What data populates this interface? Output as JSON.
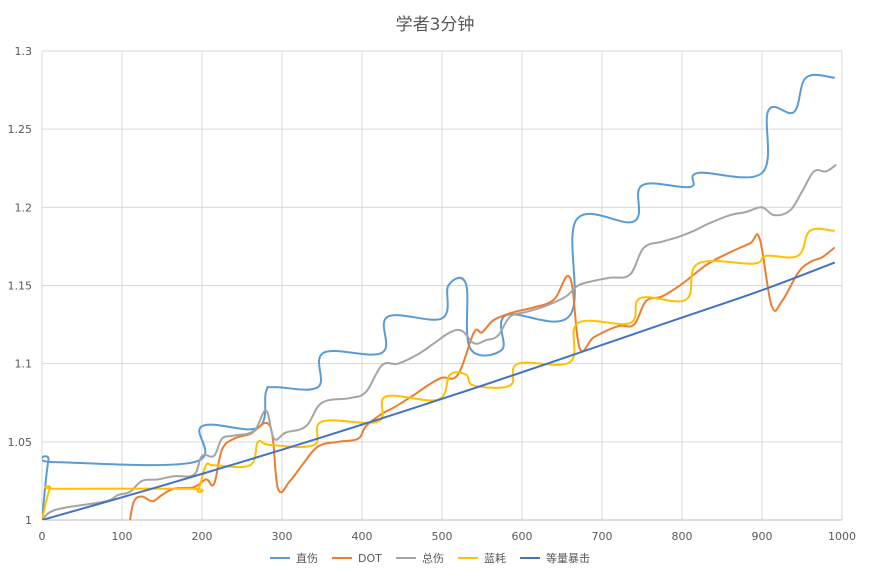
{
  "chart_data": {
    "type": "line",
    "title": "学者3分钟",
    "xlabel": "",
    "ylabel": "",
    "xlim": [
      0,
      1000
    ],
    "ylim": [
      1,
      1.3
    ],
    "x_ticks": [
      0,
      100,
      200,
      300,
      400,
      500,
      600,
      700,
      800,
      900,
      1000
    ],
    "y_ticks": [
      1,
      1.05,
      1.1,
      1.15,
      1.2,
      1.25,
      1.3
    ],
    "y_tick_labels": [
      "1",
      "1.05",
      "1.1",
      "1.15",
      "1.2",
      "1.25",
      "1.3"
    ],
    "grid": true,
    "legend_position": "bottom",
    "series": [
      {
        "name": "直伤",
        "color": "#5B9BD5",
        "points": [
          [
            0,
            1.0
          ],
          [
            8,
            1.038
          ],
          [
            15,
            1.037
          ],
          [
            190,
            1.037
          ],
          [
            200,
            1.06
          ],
          [
            270,
            1.059
          ],
          [
            280,
            1.082
          ],
          [
            290,
            1.085
          ],
          [
            345,
            1.085
          ],
          [
            352,
            1.107
          ],
          [
            425,
            1.107
          ],
          [
            432,
            1.13
          ],
          [
            500,
            1.129
          ],
          [
            508,
            1.15
          ],
          [
            530,
            1.151
          ],
          [
            535,
            1.11
          ],
          [
            575,
            1.109
          ],
          [
            580,
            1.131
          ],
          [
            660,
            1.131
          ],
          [
            668,
            1.192
          ],
          [
            740,
            1.191
          ],
          [
            750,
            1.214
          ],
          [
            810,
            1.213
          ],
          [
            820,
            1.222
          ],
          [
            900,
            1.222
          ],
          [
            908,
            1.262
          ],
          [
            940,
            1.261
          ],
          [
            955,
            1.283
          ],
          [
            990,
            1.283
          ]
        ]
      },
      {
        "name": "DOT",
        "color": "#ED7D31",
        "points": [
          [
            110,
            1.0
          ],
          [
            115,
            1.012
          ],
          [
            125,
            1.015
          ],
          [
            138,
            1.012
          ],
          [
            150,
            1.016
          ],
          [
            165,
            1.02
          ],
          [
            190,
            1.021
          ],
          [
            205,
            1.026
          ],
          [
            215,
            1.023
          ],
          [
            225,
            1.045
          ],
          [
            240,
            1.052
          ],
          [
            260,
            1.055
          ],
          [
            285,
            1.06
          ],
          [
            295,
            1.02
          ],
          [
            310,
            1.025
          ],
          [
            325,
            1.035
          ],
          [
            345,
            1.047
          ],
          [
            370,
            1.05
          ],
          [
            395,
            1.052
          ],
          [
            405,
            1.06
          ],
          [
            425,
            1.068
          ],
          [
            440,
            1.072
          ],
          [
            465,
            1.08
          ],
          [
            485,
            1.087
          ],
          [
            500,
            1.091
          ],
          [
            520,
            1.093
          ],
          [
            540,
            1.12
          ],
          [
            550,
            1.12
          ],
          [
            565,
            1.128
          ],
          [
            590,
            1.133
          ],
          [
            615,
            1.136
          ],
          [
            640,
            1.141
          ],
          [
            660,
            1.155
          ],
          [
            672,
            1.11
          ],
          [
            690,
            1.117
          ],
          [
            720,
            1.124
          ],
          [
            740,
            1.125
          ],
          [
            755,
            1.14
          ],
          [
            775,
            1.143
          ],
          [
            800,
            1.151
          ],
          [
            830,
            1.163
          ],
          [
            855,
            1.17
          ],
          [
            885,
            1.177
          ],
          [
            897,
            1.18
          ],
          [
            912,
            1.137
          ],
          [
            925,
            1.14
          ],
          [
            945,
            1.158
          ],
          [
            960,
            1.165
          ],
          [
            975,
            1.168
          ],
          [
            990,
            1.174
          ]
        ]
      },
      {
        "name": "总伤",
        "color": "#A5A5A5",
        "points": [
          [
            0,
            1.0
          ],
          [
            10,
            1.005
          ],
          [
            30,
            1.008
          ],
          [
            80,
            1.012
          ],
          [
            95,
            1.016
          ],
          [
            110,
            1.018
          ],
          [
            125,
            1.025
          ],
          [
            145,
            1.026
          ],
          [
            165,
            1.028
          ],
          [
            190,
            1.029
          ],
          [
            200,
            1.041
          ],
          [
            215,
            1.041
          ],
          [
            225,
            1.052
          ],
          [
            240,
            1.054
          ],
          [
            265,
            1.057
          ],
          [
            280,
            1.07
          ],
          [
            290,
            1.052
          ],
          [
            305,
            1.056
          ],
          [
            330,
            1.06
          ],
          [
            350,
            1.075
          ],
          [
            385,
            1.078
          ],
          [
            405,
            1.082
          ],
          [
            425,
            1.099
          ],
          [
            445,
            1.1
          ],
          [
            470,
            1.106
          ],
          [
            490,
            1.113
          ],
          [
            510,
            1.12
          ],
          [
            525,
            1.121
          ],
          [
            540,
            1.113
          ],
          [
            555,
            1.115
          ],
          [
            570,
            1.118
          ],
          [
            585,
            1.13
          ],
          [
            605,
            1.133
          ],
          [
            630,
            1.137
          ],
          [
            655,
            1.143
          ],
          [
            670,
            1.15
          ],
          [
            690,
            1.153
          ],
          [
            710,
            1.155
          ],
          [
            735,
            1.157
          ],
          [
            752,
            1.174
          ],
          [
            775,
            1.178
          ],
          [
            795,
            1.181
          ],
          [
            815,
            1.185
          ],
          [
            835,
            1.19
          ],
          [
            860,
            1.195
          ],
          [
            880,
            1.197
          ],
          [
            900,
            1.2
          ],
          [
            915,
            1.195
          ],
          [
            935,
            1.198
          ],
          [
            950,
            1.21
          ],
          [
            965,
            1.223
          ],
          [
            980,
            1.223
          ],
          [
            992,
            1.227
          ]
        ]
      },
      {
        "name": "蓝耗",
        "color": "#FFC000",
        "points": [
          [
            0,
            1.0
          ],
          [
            10,
            1.02
          ],
          [
            20,
            1.02
          ],
          [
            185,
            1.02
          ],
          [
            195,
            1.019
          ],
          [
            205,
            1.035
          ],
          [
            215,
            1.035
          ],
          [
            260,
            1.035
          ],
          [
            270,
            1.05
          ],
          [
            285,
            1.048
          ],
          [
            340,
            1.048
          ],
          [
            350,
            1.063
          ],
          [
            420,
            1.063
          ],
          [
            430,
            1.079
          ],
          [
            495,
            1.077
          ],
          [
            510,
            1.093
          ],
          [
            530,
            1.093
          ],
          [
            540,
            1.086
          ],
          [
            585,
            1.086
          ],
          [
            595,
            1.1
          ],
          [
            660,
            1.101
          ],
          [
            670,
            1.126
          ],
          [
            735,
            1.126
          ],
          [
            748,
            1.142
          ],
          [
            805,
            1.141
          ],
          [
            820,
            1.164
          ],
          [
            890,
            1.164
          ],
          [
            905,
            1.169
          ],
          [
            945,
            1.169
          ],
          [
            960,
            1.185
          ],
          [
            990,
            1.185
          ]
        ]
      },
      {
        "name": "等量暴击",
        "color": "#4472C4",
        "points": [
          [
            0,
            1.0
          ],
          [
            100,
            1.0145
          ],
          [
            200,
            1.0295
          ],
          [
            300,
            1.045
          ],
          [
            400,
            1.061
          ],
          [
            500,
            1.0775
          ],
          [
            600,
            1.0945
          ],
          [
            700,
            1.112
          ],
          [
            800,
            1.1295
          ],
          [
            900,
            1.147
          ],
          [
            990,
            1.1645
          ]
        ]
      }
    ]
  }
}
